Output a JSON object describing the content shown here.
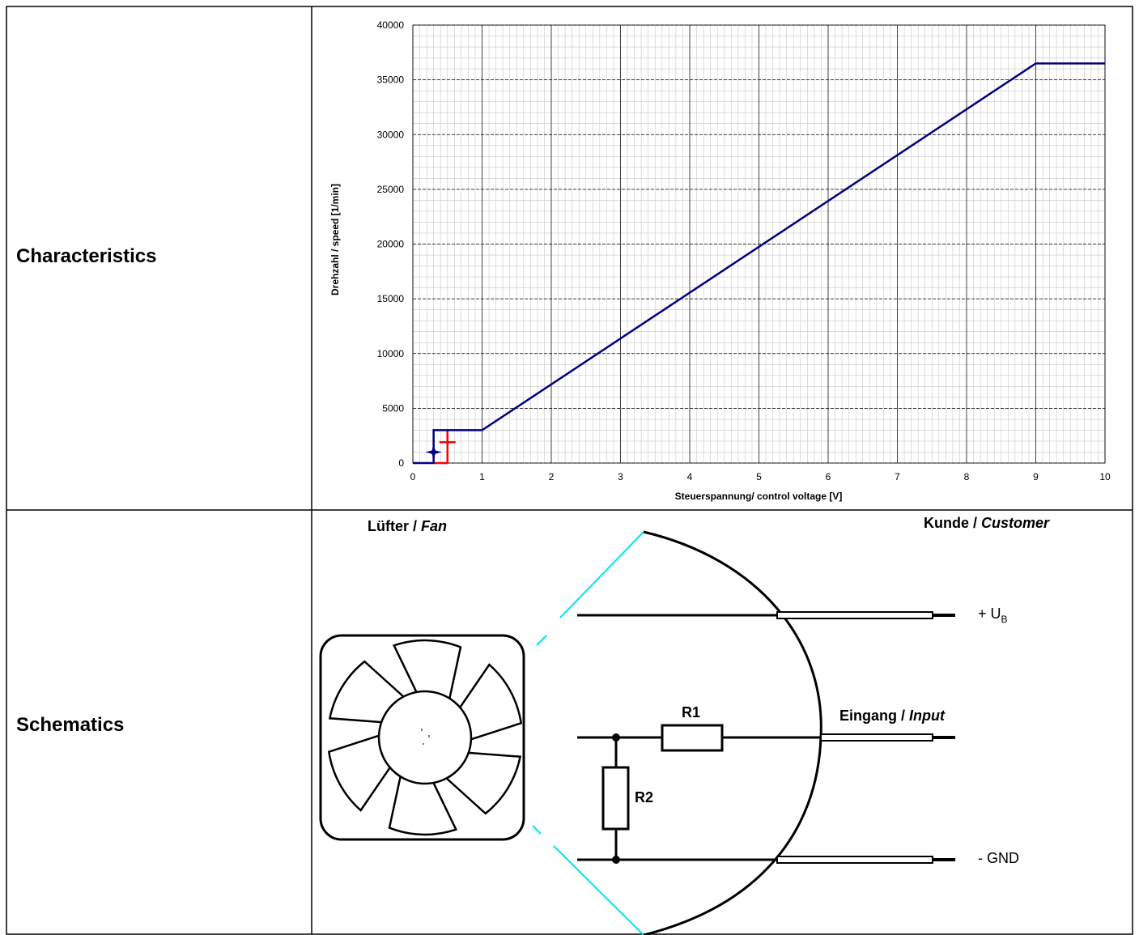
{
  "rows": {
    "characteristics_label": "Characteristics",
    "schematics_label": "Schematics"
  },
  "chart_data": {
    "type": "line",
    "title": "",
    "xlabel": "Steuerspannung/ control voltage [V]",
    "ylabel": "Drehzahl / speed [1/min]",
    "xlim": [
      0,
      10
    ],
    "ylim": [
      0,
      40000
    ],
    "x_ticks": [
      0,
      1,
      2,
      3,
      4,
      5,
      6,
      7,
      8,
      9,
      10
    ],
    "y_ticks": [
      0,
      5000,
      10000,
      15000,
      20000,
      25000,
      30000,
      35000,
      40000
    ],
    "grid": true,
    "legend": "none",
    "series": [
      {
        "color": "#000080",
        "x": [
          0,
          0.3,
          0.3,
          1,
          9,
          10
        ],
        "y": [
          0,
          0,
          3000,
          3000,
          36500,
          36500
        ]
      },
      {
        "color": "#ff0000",
        "x": [
          0.3,
          0.5,
          0.5
        ],
        "y": [
          0,
          0,
          3000
        ]
      }
    ],
    "markers": [
      {
        "color": "#000080",
        "x": 0.3,
        "y": 1000,
        "shape": "star"
      },
      {
        "color": "#ff0000",
        "x": 0.5,
        "y": 1900,
        "shape": "plus"
      }
    ]
  },
  "schematic": {
    "fan_label_de": "Lüfter / ",
    "fan_label_en": "Fan",
    "customer_label_de": "Kunde / ",
    "customer_label_en": "Customer",
    "ub_label": "+ U",
    "ub_sub": "B",
    "input_label_de": "Eingang / ",
    "input_label_en": "Input",
    "gnd_label": "- GND",
    "r1_label": "R1",
    "r2_label": "R2"
  }
}
